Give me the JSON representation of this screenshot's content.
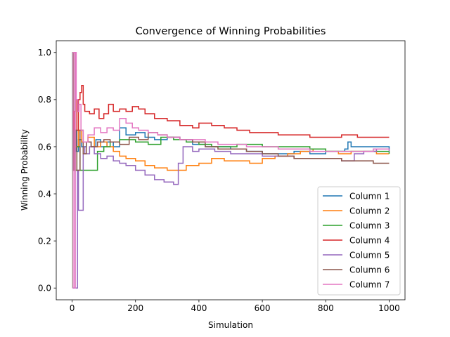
{
  "chart_data": {
    "type": "line",
    "title": "Convergence of Winning Probabilities",
    "xlabel": "Simulation",
    "ylabel": "Winning Probability",
    "xlim": [
      -50,
      1050
    ],
    "ylim": [
      -0.05,
      1.05
    ],
    "xticks": [
      0,
      200,
      400,
      600,
      800,
      1000
    ],
    "yticks": [
      0.0,
      0.2,
      0.4,
      0.6,
      0.8,
      1.0
    ],
    "xtick_labels": [
      "0",
      "200",
      "400",
      "600",
      "800",
      "1000"
    ],
    "ytick_labels": [
      "0.0",
      "0.2",
      "0.4",
      "0.6",
      "0.8",
      "1.0"
    ],
    "grid": false,
    "legend_position": "lower-right",
    "series": [
      {
        "name": "Column 1",
        "color": "#1f77b4",
        "points": [
          [
            1,
            1.0
          ],
          [
            2,
            0.5
          ],
          [
            3,
            0.67
          ],
          [
            5,
            0.6
          ],
          [
            8,
            0.67
          ],
          [
            12,
            0.58
          ],
          [
            20,
            0.63
          ],
          [
            30,
            0.6
          ],
          [
            45,
            0.62
          ],
          [
            60,
            0.6
          ],
          [
            75,
            0.63
          ],
          [
            90,
            0.6
          ],
          [
            110,
            0.62
          ],
          [
            130,
            0.6
          ],
          [
            150,
            0.68
          ],
          [
            170,
            0.65
          ],
          [
            200,
            0.66
          ],
          [
            230,
            0.64
          ],
          [
            260,
            0.63
          ],
          [
            300,
            0.64
          ],
          [
            340,
            0.63
          ],
          [
            380,
            0.61
          ],
          [
            420,
            0.6
          ],
          [
            460,
            0.6
          ],
          [
            500,
            0.59
          ],
          [
            550,
            0.58
          ],
          [
            600,
            0.57
          ],
          [
            650,
            0.57
          ],
          [
            700,
            0.58
          ],
          [
            750,
            0.57
          ],
          [
            800,
            0.58
          ],
          [
            840,
            0.58
          ],
          [
            860,
            0.59
          ],
          [
            870,
            0.62
          ],
          [
            880,
            0.6
          ],
          [
            920,
            0.6
          ],
          [
            960,
            0.6
          ],
          [
            1000,
            0.59
          ]
        ]
      },
      {
        "name": "Column 2",
        "color": "#ff7f0e",
        "points": [
          [
            1,
            1.0
          ],
          [
            3,
            0.5
          ],
          [
            6,
            0.67
          ],
          [
            10,
            0.6
          ],
          [
            20,
            0.67
          ],
          [
            30,
            0.62
          ],
          [
            50,
            0.64
          ],
          [
            70,
            0.6
          ],
          [
            90,
            0.62
          ],
          [
            110,
            0.6
          ],
          [
            130,
            0.58
          ],
          [
            150,
            0.56
          ],
          [
            170,
            0.55
          ],
          [
            200,
            0.54
          ],
          [
            230,
            0.52
          ],
          [
            260,
            0.51
          ],
          [
            300,
            0.5
          ],
          [
            330,
            0.5
          ],
          [
            360,
            0.52
          ],
          [
            400,
            0.53
          ],
          [
            440,
            0.55
          ],
          [
            480,
            0.54
          ],
          [
            520,
            0.54
          ],
          [
            560,
            0.53
          ],
          [
            600,
            0.55
          ],
          [
            640,
            0.56
          ],
          [
            680,
            0.57
          ],
          [
            720,
            0.58
          ],
          [
            760,
            0.59
          ],
          [
            800,
            0.58
          ],
          [
            840,
            0.57
          ],
          [
            880,
            0.58
          ],
          [
            920,
            0.58
          ],
          [
            960,
            0.57
          ],
          [
            1000,
            0.57
          ]
        ]
      },
      {
        "name": "Column 3",
        "color": "#2ca02c",
        "points": [
          [
            1,
            0.0
          ],
          [
            2,
            1.0
          ],
          [
            4,
            0.67
          ],
          [
            8,
            0.5
          ],
          [
            15,
            0.6
          ],
          [
            25,
            0.5
          ],
          [
            40,
            0.5
          ],
          [
            60,
            0.5
          ],
          [
            80,
            0.58
          ],
          [
            100,
            0.6
          ],
          [
            120,
            0.62
          ],
          [
            150,
            0.63
          ],
          [
            180,
            0.63
          ],
          [
            200,
            0.62
          ],
          [
            240,
            0.61
          ],
          [
            280,
            0.64
          ],
          [
            320,
            0.63
          ],
          [
            360,
            0.62
          ],
          [
            400,
            0.61
          ],
          [
            440,
            0.6
          ],
          [
            480,
            0.6
          ],
          [
            520,
            0.61
          ],
          [
            560,
            0.61
          ],
          [
            600,
            0.6
          ],
          [
            650,
            0.6
          ],
          [
            700,
            0.6
          ],
          [
            750,
            0.59
          ],
          [
            800,
            0.58
          ],
          [
            850,
            0.58
          ],
          [
            900,
            0.58
          ],
          [
            950,
            0.58
          ],
          [
            1000,
            0.57
          ]
        ]
      },
      {
        "name": "Column 4",
        "color": "#d62728",
        "points": [
          [
            1,
            1.0
          ],
          [
            3,
            0.67
          ],
          [
            6,
            0.75
          ],
          [
            10,
            0.8
          ],
          [
            15,
            0.67
          ],
          [
            20,
            0.8
          ],
          [
            25,
            0.83
          ],
          [
            30,
            0.86
          ],
          [
            35,
            0.78
          ],
          [
            40,
            0.75
          ],
          [
            55,
            0.74
          ],
          [
            70,
            0.76
          ],
          [
            85,
            0.72
          ],
          [
            100,
            0.74
          ],
          [
            115,
            0.78
          ],
          [
            130,
            0.75
          ],
          [
            150,
            0.76
          ],
          [
            170,
            0.75
          ],
          [
            190,
            0.77
          ],
          [
            210,
            0.76
          ],
          [
            230,
            0.74
          ],
          [
            260,
            0.72
          ],
          [
            300,
            0.71
          ],
          [
            340,
            0.69
          ],
          [
            380,
            0.68
          ],
          [
            400,
            0.7
          ],
          [
            440,
            0.69
          ],
          [
            480,
            0.68
          ],
          [
            520,
            0.67
          ],
          [
            560,
            0.66
          ],
          [
            600,
            0.66
          ],
          [
            650,
            0.65
          ],
          [
            700,
            0.65
          ],
          [
            750,
            0.64
          ],
          [
            800,
            0.64
          ],
          [
            850,
            0.65
          ],
          [
            900,
            0.64
          ],
          [
            950,
            0.64
          ],
          [
            1000,
            0.64
          ]
        ]
      },
      {
        "name": "Column 5",
        "color": "#9467bd",
        "points": [
          [
            1,
            0.0
          ],
          [
            15,
            0.0
          ],
          [
            17,
            0.5
          ],
          [
            20,
            0.33
          ],
          [
            32,
            0.33
          ],
          [
            35,
            0.6
          ],
          [
            40,
            0.57
          ],
          [
            55,
            0.6
          ],
          [
            70,
            0.57
          ],
          [
            90,
            0.55
          ],
          [
            110,
            0.56
          ],
          [
            130,
            0.54
          ],
          [
            150,
            0.53
          ],
          [
            170,
            0.52
          ],
          [
            200,
            0.5
          ],
          [
            230,
            0.48
          ],
          [
            260,
            0.46
          ],
          [
            290,
            0.45
          ],
          [
            320,
            0.44
          ],
          [
            335,
            0.53
          ],
          [
            350,
            0.6
          ],
          [
            380,
            0.58
          ],
          [
            400,
            0.59
          ],
          [
            450,
            0.58
          ],
          [
            500,
            0.57
          ],
          [
            550,
            0.57
          ],
          [
            600,
            0.56
          ],
          [
            650,
            0.56
          ],
          [
            700,
            0.55
          ],
          [
            750,
            0.55
          ],
          [
            800,
            0.55
          ],
          [
            850,
            0.54
          ],
          [
            880,
            0.54
          ],
          [
            890,
            0.57
          ],
          [
            920,
            0.58
          ],
          [
            960,
            0.59
          ],
          [
            1000,
            0.58
          ]
        ]
      },
      {
        "name": "Column 6",
        "color": "#8c564b",
        "points": [
          [
            1,
            1.0
          ],
          [
            3,
            0.67
          ],
          [
            6,
            0.5
          ],
          [
            10,
            0.67
          ],
          [
            15,
            0.5
          ],
          [
            25,
            0.67
          ],
          [
            35,
            0.57
          ],
          [
            45,
            0.62
          ],
          [
            60,
            0.6
          ],
          [
            80,
            0.62
          ],
          [
            100,
            0.63
          ],
          [
            120,
            0.62
          ],
          [
            150,
            0.61
          ],
          [
            180,
            0.64
          ],
          [
            210,
            0.63
          ],
          [
            240,
            0.66
          ],
          [
            270,
            0.65
          ],
          [
            300,
            0.64
          ],
          [
            340,
            0.63
          ],
          [
            380,
            0.62
          ],
          [
            420,
            0.6
          ],
          [
            460,
            0.59
          ],
          [
            500,
            0.59
          ],
          [
            550,
            0.58
          ],
          [
            600,
            0.57
          ],
          [
            650,
            0.56
          ],
          [
            700,
            0.55
          ],
          [
            750,
            0.55
          ],
          [
            800,
            0.55
          ],
          [
            850,
            0.54
          ],
          [
            900,
            0.54
          ],
          [
            950,
            0.53
          ],
          [
            1000,
            0.53
          ]
        ]
      },
      {
        "name": "Column 7",
        "color": "#e377c2",
        "points": [
          [
            1,
            0.0
          ],
          [
            3,
            1.0
          ],
          [
            8,
            0.0
          ],
          [
            10,
            1.0
          ],
          [
            13,
            0.8
          ],
          [
            18,
            0.75
          ],
          [
            22,
            0.78
          ],
          [
            28,
            0.67
          ],
          [
            35,
            0.62
          ],
          [
            50,
            0.65
          ],
          [
            70,
            0.68
          ],
          [
            90,
            0.66
          ],
          [
            110,
            0.68
          ],
          [
            130,
            0.67
          ],
          [
            150,
            0.72
          ],
          [
            170,
            0.7
          ],
          [
            190,
            0.68
          ],
          [
            210,
            0.67
          ],
          [
            240,
            0.66
          ],
          [
            270,
            0.65
          ],
          [
            300,
            0.64
          ],
          [
            340,
            0.63
          ],
          [
            380,
            0.63
          ],
          [
            420,
            0.62
          ],
          [
            460,
            0.61
          ],
          [
            500,
            0.61
          ],
          [
            550,
            0.6
          ],
          [
            600,
            0.6
          ],
          [
            650,
            0.59
          ],
          [
            700,
            0.59
          ],
          [
            750,
            0.58
          ],
          [
            800,
            0.58
          ],
          [
            850,
            0.58
          ],
          [
            900,
            0.58
          ],
          [
            950,
            0.59
          ],
          [
            1000,
            0.59
          ]
        ]
      }
    ]
  }
}
